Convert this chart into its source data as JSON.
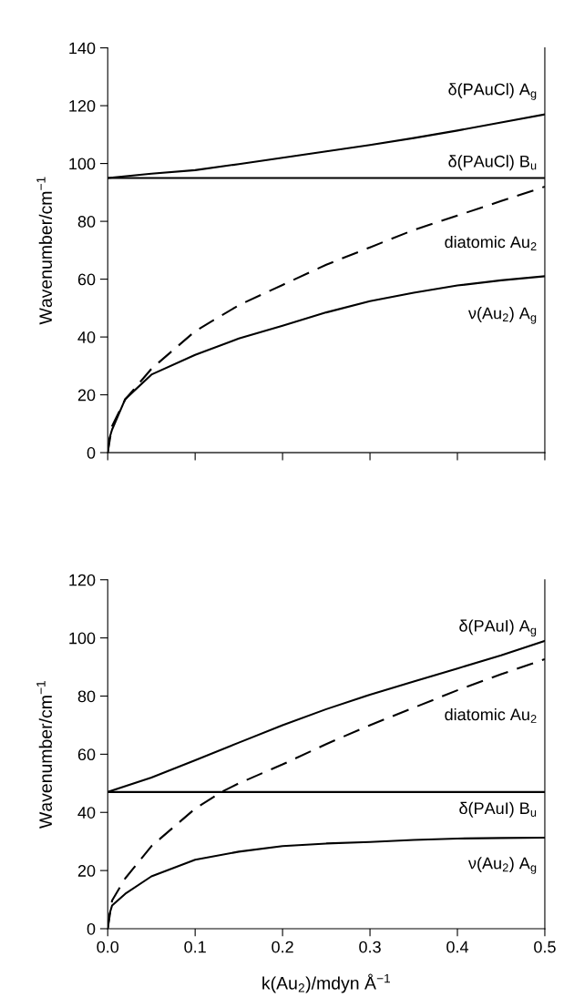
{
  "chart_data": [
    {
      "type": "line",
      "xlim": [
        0,
        0.5
      ],
      "xticks": [
        0,
        0.1,
        0.2,
        0.3,
        0.4,
        0.5
      ],
      "ylim": [
        0,
        140
      ],
      "yticks": [
        0,
        20,
        40,
        60,
        80,
        100,
        120,
        140
      ],
      "ylabel": "Wavenumber/cm$^{−1}$",
      "tick_labels": "y",
      "grid": false,
      "legend": false,
      "series": [
        {
          "name": "δ(PAuCl) A$_{g}$",
          "color": "#000000",
          "line_style": "solid",
          "x": [
            0,
            0.05,
            0.1,
            0.15,
            0.2,
            0.25,
            0.3,
            0.35,
            0.4,
            0.45,
            0.5
          ],
          "values": [
            95,
            96.5,
            97.7,
            99.8,
            102,
            104.2,
            106.4,
            108.8,
            111.4,
            114.2,
            117
          ]
        },
        {
          "name": "δ(PAuCl) B$_{u}$",
          "color": "#000000",
          "line_style": "solid",
          "x": [
            0,
            0.5
          ],
          "values": [
            95,
            95
          ]
        },
        {
          "name": "diatomic Au$_{2}$",
          "color": "#000000",
          "line_style": "dashed",
          "x": [
            0,
            0.005,
            0.02,
            0.05,
            0.1,
            0.15,
            0.2,
            0.25,
            0.3,
            0.35,
            0.4,
            0.45,
            0.5
          ],
          "values": [
            0,
            9.2,
            18.4,
            29,
            42,
            51,
            58,
            65,
            71,
            77,
            82,
            87,
            92
          ]
        },
        {
          "name": "ν(Au$_{2}$) A$_{g}$",
          "color": "#000000",
          "line_style": "solid",
          "x": [
            0,
            0.002,
            0.005,
            0.02,
            0.05,
            0.1,
            0.15,
            0.2,
            0.25,
            0.3,
            0.35,
            0.4,
            0.45,
            0.5
          ],
          "values": [
            0,
            5,
            8,
            18.5,
            27,
            33.8,
            39.5,
            43.9,
            48.5,
            52.4,
            55.3,
            57.8,
            59.6,
            61
          ]
        }
      ]
    },
    {
      "type": "line",
      "xlim": [
        0,
        0.5
      ],
      "xticks": [
        {
          "value": 0,
          "label": "0.0"
        },
        0.1,
        0.2,
        0.3,
        0.4,
        0.5
      ],
      "ylim": [
        0,
        120
      ],
      "yticks": [
        0,
        20,
        40,
        60,
        80,
        100,
        120
      ],
      "ylabel": "Wavenumber/cm$^{−1}$",
      "xlabel": "k(Au$_{2}$)/mdyn Å$^{−1}$",
      "grid": false,
      "legend": false,
      "series": [
        {
          "name": "δ(PAuI) A$_{g}$",
          "color": "#000000",
          "line_style": "solid",
          "x": [
            0,
            0.05,
            0.1,
            0.15,
            0.2,
            0.25,
            0.3,
            0.35,
            0.4,
            0.45,
            0.5
          ],
          "values": [
            47,
            52,
            57.9,
            64,
            70,
            75.5,
            80.5,
            85,
            89.5,
            94,
            99
          ]
        },
        {
          "name": "δ(PAuI) B$_{u}$",
          "color": "#000000",
          "line_style": "solid",
          "x": [
            0,
            0.5
          ],
          "values": [
            47,
            47
          ]
        },
        {
          "name": "diatomic Au$_{2}$",
          "color": "#000000",
          "line_style": "dashed",
          "x": [
            0,
            0.005,
            0.02,
            0.05,
            0.1,
            0.13,
            0.15,
            0.2,
            0.25,
            0.3,
            0.35,
            0.4,
            0.45,
            0.5
          ],
          "values": [
            0,
            9.7,
            17.3,
            28.4,
            41.3,
            47,
            50,
            56.5,
            63.5,
            70,
            76,
            82,
            87.5,
            92.7
          ]
        },
        {
          "name": "ν(Au$_{2}$) A$_{g}$",
          "color": "#000000",
          "line_style": "solid",
          "x": [
            0,
            0.002,
            0.005,
            0.02,
            0.05,
            0.1,
            0.15,
            0.2,
            0.25,
            0.3,
            0.35,
            0.4,
            0.45,
            0.5
          ],
          "values": [
            0,
            5,
            8,
            12,
            18,
            23.7,
            26.5,
            28.4,
            29.3,
            29.8,
            30.5,
            31,
            31.2,
            31.3
          ]
        }
      ]
    }
  ]
}
